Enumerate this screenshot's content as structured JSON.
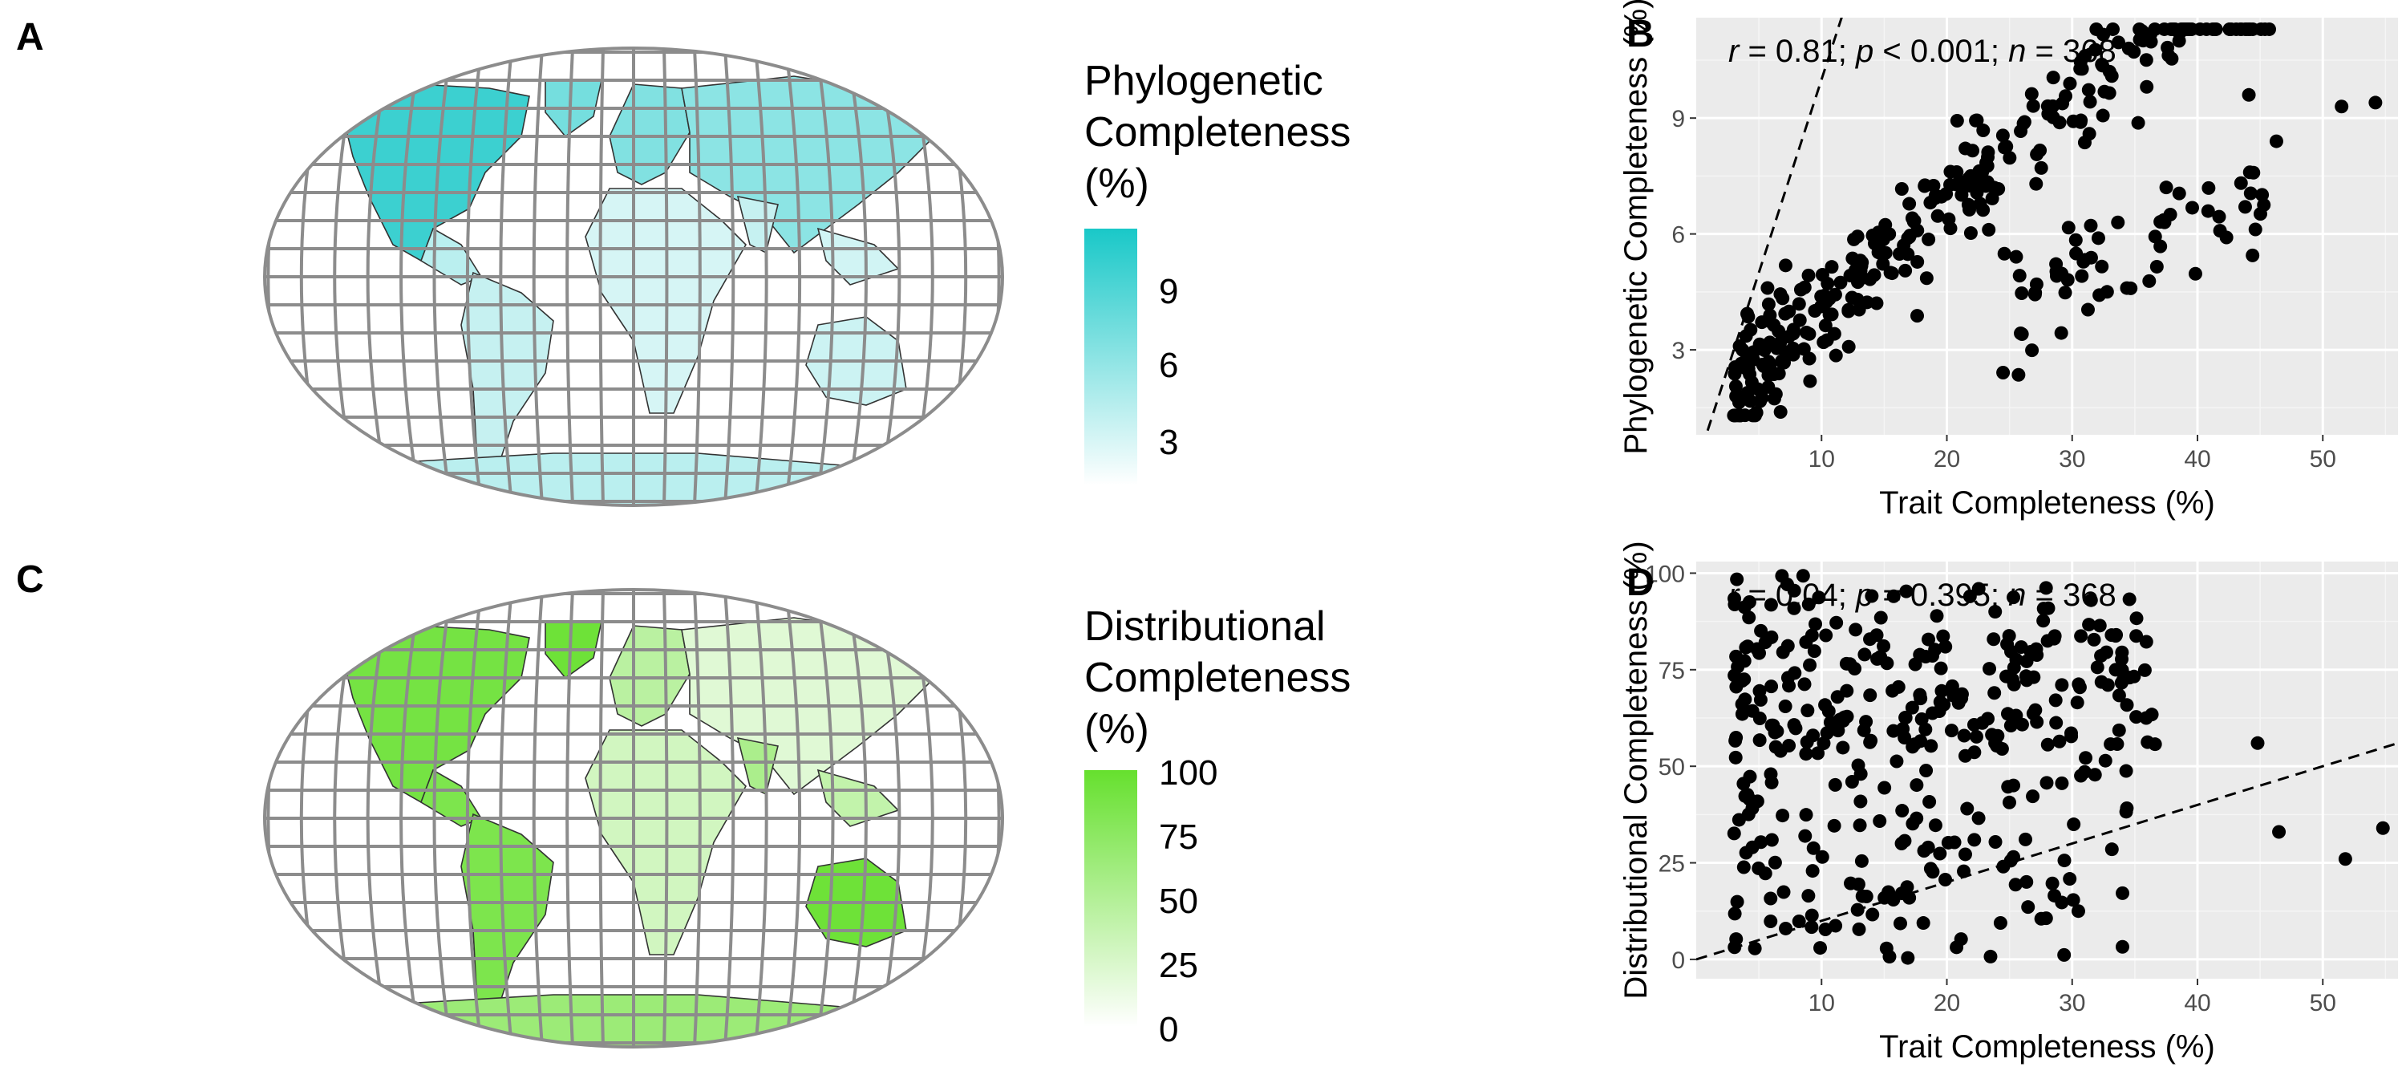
{
  "panels": {
    "a": "A",
    "b": "B",
    "c": "C",
    "d": "D"
  },
  "legend_a": {
    "title_lines": [
      "Phylogenetic",
      "Completeness",
      "(%)"
    ],
    "ticks": [
      "9",
      "6",
      "3"
    ],
    "color_high": "#19c8c8",
    "color_low": "#ffffff"
  },
  "legend_c": {
    "title_lines": [
      "Distributional",
      "Completeness",
      "(%)"
    ],
    "ticks": [
      "100",
      "75",
      "50",
      "25",
      "0"
    ],
    "color_high": "#66e02e",
    "color_low": "#ffffff"
  },
  "chart_data": [
    {
      "type": "scatter",
      "panel": "B",
      "xlabel": "Trait Completeness (%)",
      "ylabel": "Phylogenetic Completeness (%)",
      "xticks": [
        10,
        20,
        30,
        40,
        50
      ],
      "yticks": [
        3,
        6,
        9
      ],
      "xlim": [
        0,
        56
      ],
      "ylim": [
        0.8,
        11.6
      ],
      "grid": true,
      "reference_line": "1:1 dashed",
      "annotation": {
        "r": "0.81",
        "p": "< 0.001",
        "n": "368"
      },
      "points_seed": 17,
      "points_n": 368
    },
    {
      "type": "scatter",
      "panel": "D",
      "xlabel": "Trait Completeness (%)",
      "ylabel": "Distributional Completeness (%)",
      "xticks": [
        10,
        20,
        30,
        40,
        50
      ],
      "yticks": [
        0,
        25,
        50,
        75,
        100
      ],
      "xlim": [
        0,
        56
      ],
      "ylim": [
        -5,
        103
      ],
      "grid": true,
      "reference_line": "1:1 dashed",
      "annotation": {
        "r": "0.04",
        "p": "0.395",
        "n": "368"
      },
      "points_seed": 29,
      "points_n": 368
    }
  ]
}
